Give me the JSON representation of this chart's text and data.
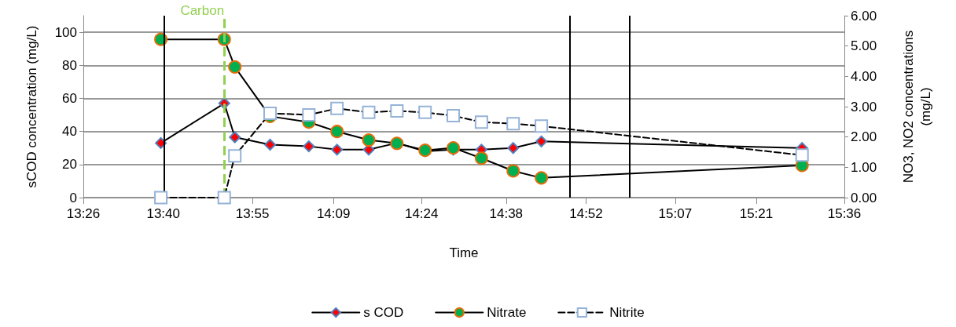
{
  "chart_data": {
    "type": "line",
    "xlabel": "Time",
    "ylabel": "sCOD concentration (mg/L)",
    "y2label": "NO3, NO2 concentrations (mg/L)",
    "xlim": [
      13.44,
      15.6
    ],
    "xticks": [
      {
        "value": 13.44,
        "label": "13:26"
      },
      {
        "value": 13.667,
        "label": "13:40"
      },
      {
        "value": 13.92,
        "label": "13:55"
      },
      {
        "value": 14.15,
        "label": "14:09"
      },
      {
        "value": 14.4,
        "label": "14:24"
      },
      {
        "value": 14.64,
        "label": "14:38"
      },
      {
        "value": 14.867,
        "label": "14:52"
      },
      {
        "value": 15.12,
        "label": "15:07"
      },
      {
        "value": 15.35,
        "label": "15:21"
      },
      {
        "value": 15.6,
        "label": "15:36"
      }
    ],
    "ylim": [
      0,
      110
    ],
    "yticks": [
      0,
      20,
      40,
      60,
      80,
      100
    ],
    "y2lim": [
      0,
      6
    ],
    "y2ticks": [
      {
        "value": 0,
        "label": "0.00"
      },
      {
        "value": 1,
        "label": "1.00"
      },
      {
        "value": 2,
        "label": "2.00"
      },
      {
        "value": 3,
        "label": "3.00"
      },
      {
        "value": 4,
        "label": "4.00"
      },
      {
        "value": 5,
        "label": "5.00"
      },
      {
        "value": 6,
        "label": "6.00"
      }
    ],
    "x": [
      13.66,
      13.84,
      13.87,
      13.97,
      14.08,
      14.16,
      14.25,
      14.33,
      14.41,
      14.49,
      14.57,
      14.66,
      14.74,
      15.48
    ],
    "series": [
      {
        "name": "s COD",
        "color": "#ff0000",
        "marker": "diamond",
        "line_style": "solid",
        "values": [
          33,
          57,
          36.5,
          32,
          31,
          29,
          29,
          33,
          28,
          29,
          29,
          30,
          34,
          30
        ]
      },
      {
        "name": "Nitrate",
        "color": "#00b050",
        "marker": "circle",
        "line_style": "solid",
        "axis": "y2",
        "values": [
          5.22,
          5.22,
          4.31,
          2.68,
          2.49,
          2.18,
          1.9,
          1.79,
          1.56,
          1.64,
          1.3,
          0.88,
          0.65,
          1.06
        ]
      },
      {
        "name": "Nitrite",
        "color": "#95b3d7",
        "marker": "square",
        "line_style": "dashed",
        "axis": "y2",
        "values": [
          0,
          0,
          1.38,
          2.78,
          2.73,
          2.94,
          2.81,
          2.86,
          2.81,
          2.7,
          2.49,
          2.44,
          2.36,
          1.4
        ]
      }
    ],
    "ref_lines": [
      {
        "axis": "x",
        "value": 13.67,
        "label": null,
        "color": "#000000",
        "line_style": "solid"
      },
      {
        "axis": "x",
        "value": 13.84,
        "label": "Carbon",
        "color": "#92d050",
        "line_style": "dashed"
      },
      {
        "axis": "x",
        "value": 14.82,
        "label": null,
        "color": "#000000",
        "line_style": "solid"
      },
      {
        "axis": "x",
        "value": 14.99,
        "label": null,
        "color": "#000000",
        "line_style": "solid"
      }
    ],
    "grid": "y",
    "legend": "bottom"
  }
}
